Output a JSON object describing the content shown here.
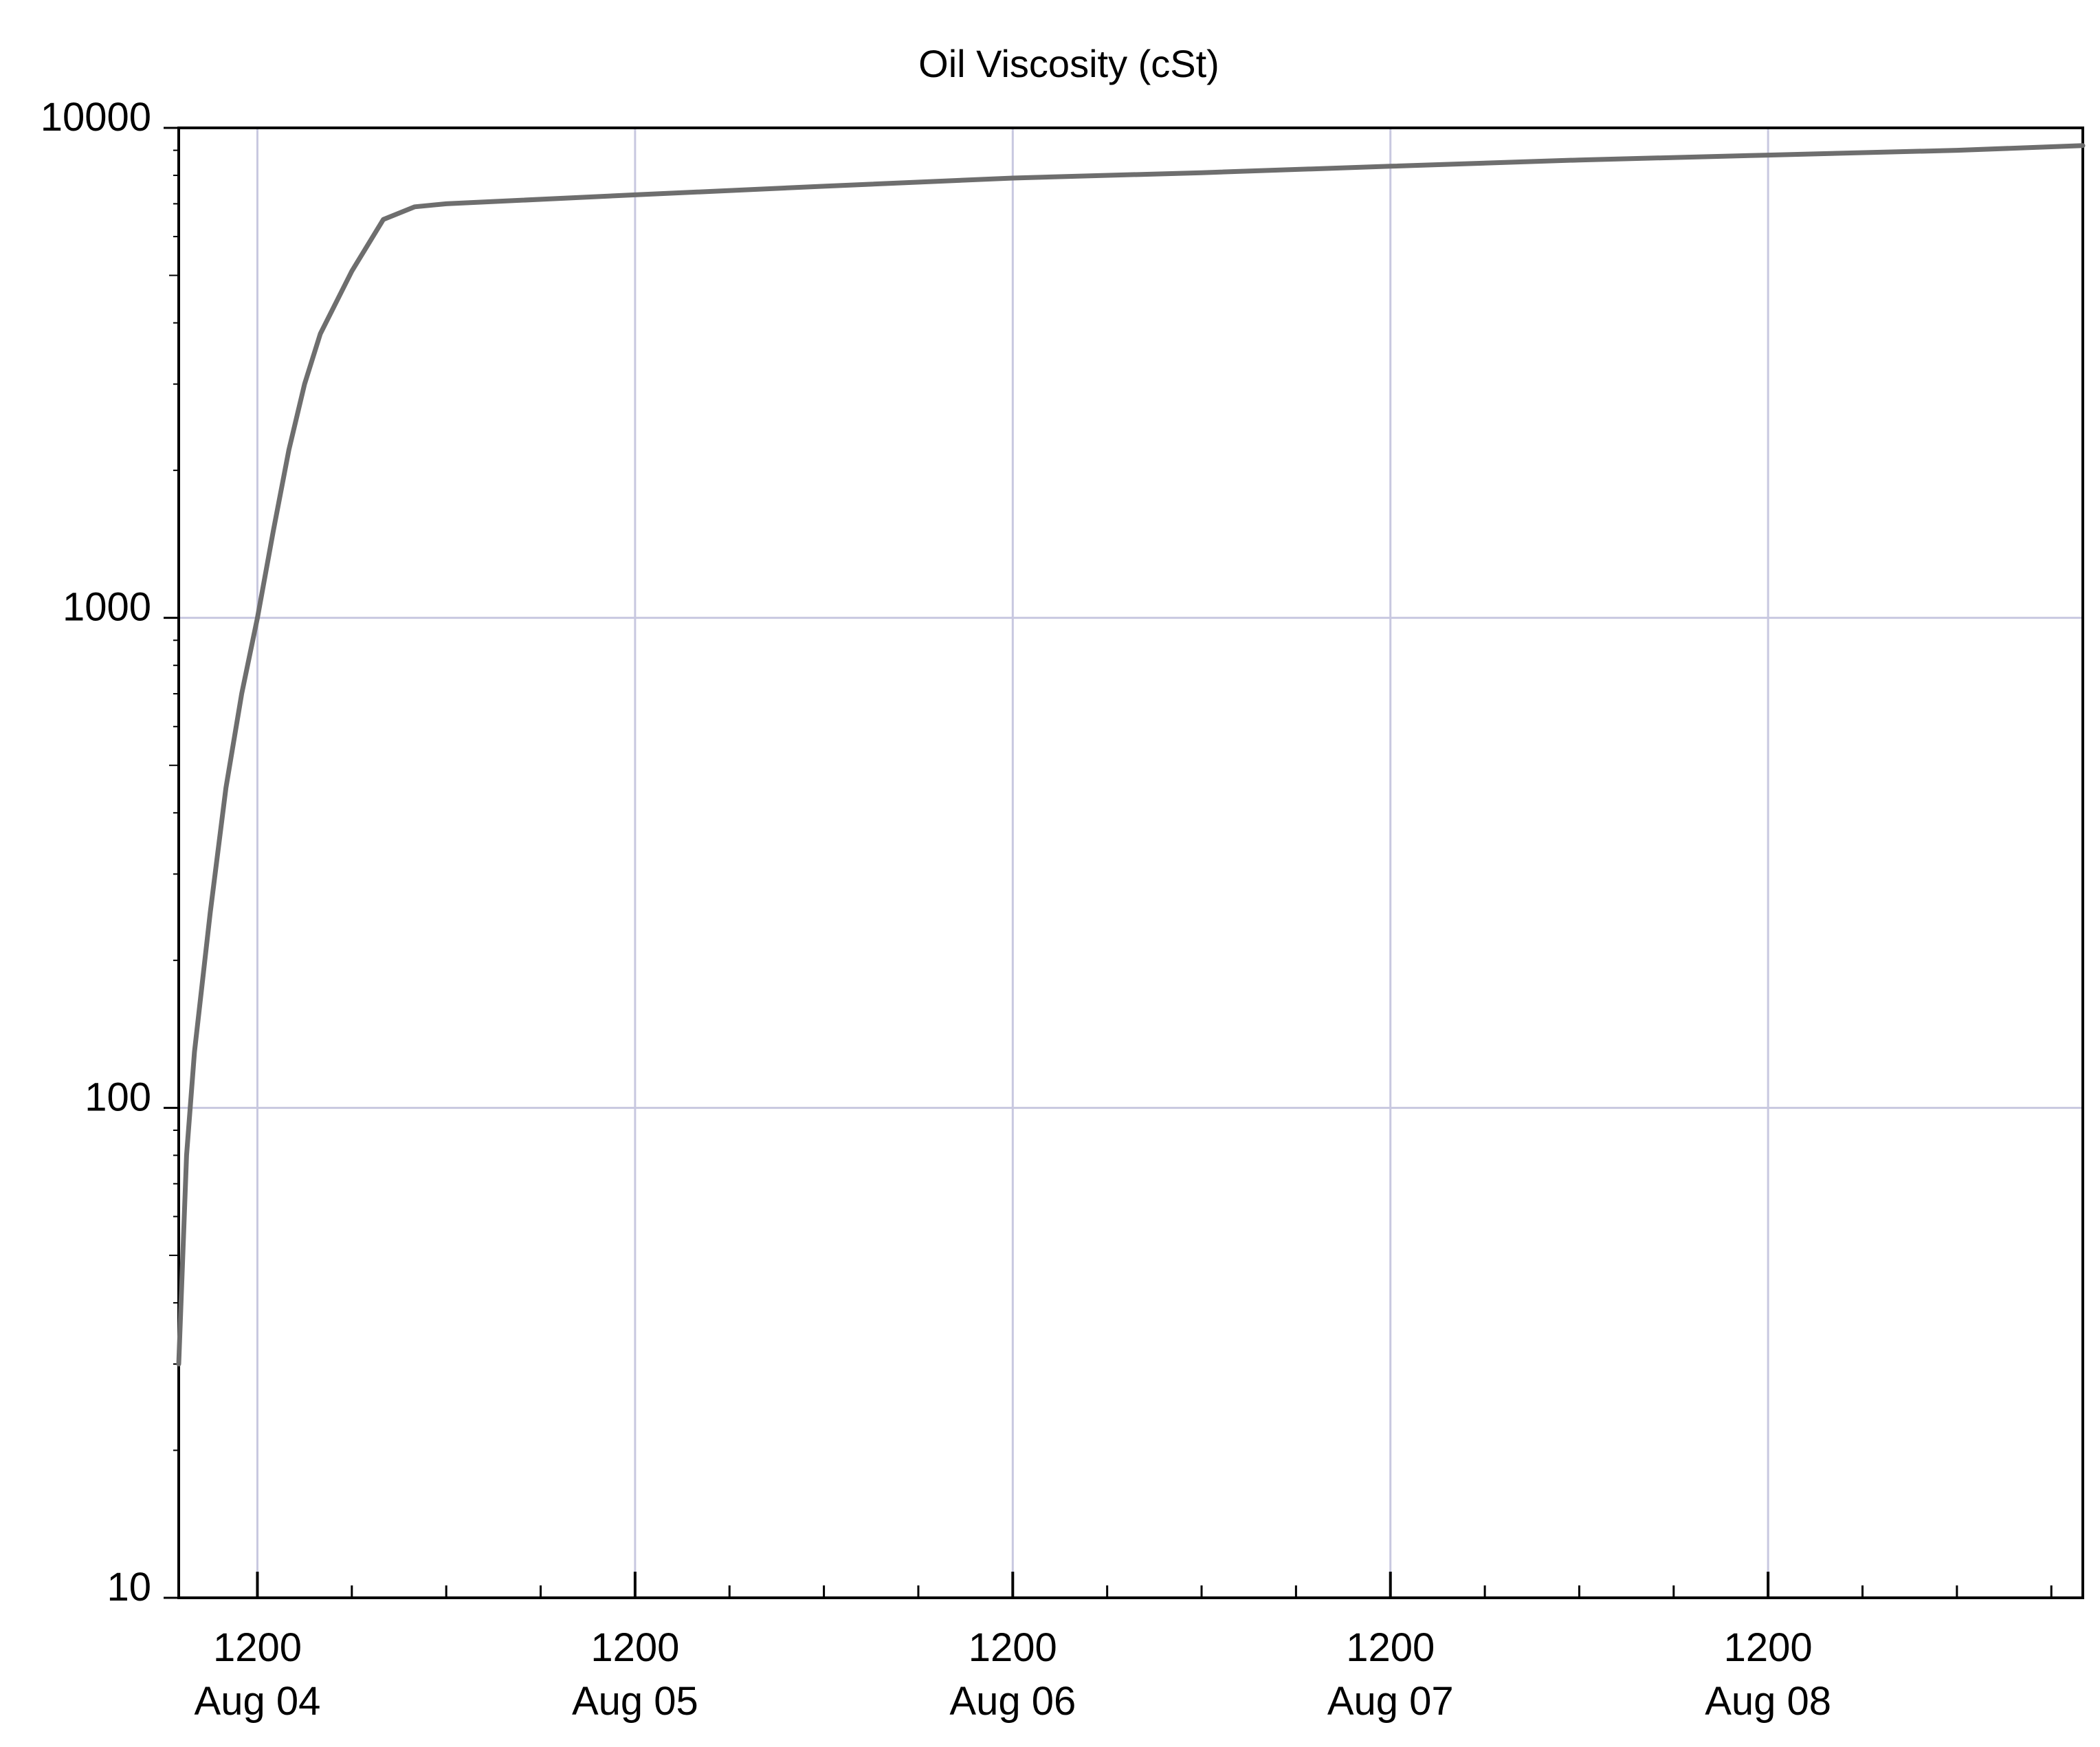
{
  "chart_data": {
    "type": "line",
    "title": "Oil Viscosity (cSt)",
    "xlabel": "",
    "ylabel": "",
    "y_scale": "log",
    "ylim": [
      10,
      10000
    ],
    "y_ticks": [
      {
        "value": 10,
        "label": "10"
      },
      {
        "value": 100,
        "label": "100"
      },
      {
        "value": 1000,
        "label": "1000"
      },
      {
        "value": 10000,
        "label": "10000"
      }
    ],
    "xlim": [
      "2004-08-04T07:00",
      "2004-08-09T08:00"
    ],
    "x_ticks": [
      {
        "value": "2004-08-04T12:00",
        "time_label": "1200",
        "date_label": "Aug 04"
      },
      {
        "value": "2004-08-05T12:00",
        "time_label": "1200",
        "date_label": "Aug 05"
      },
      {
        "value": "2004-08-06T12:00",
        "time_label": "1200",
        "date_label": "Aug 06"
      },
      {
        "value": "2004-08-07T12:00",
        "time_label": "1200",
        "date_label": "Aug 07"
      },
      {
        "value": "2004-08-08T12:00",
        "time_label": "1200",
        "date_label": "Aug 08"
      }
    ],
    "grid": true,
    "line_color": "#6e6e6e",
    "grid_color": "#c8c8e0",
    "series": [
      {
        "x": [
          "2004-08-04T07:00",
          "2004-08-04T07:30",
          "2004-08-04T08:00",
          "2004-08-04T09:00",
          "2004-08-04T10:00",
          "2004-08-04T11:00",
          "2004-08-04T12:00",
          "2004-08-04T13:00",
          "2004-08-04T14:00",
          "2004-08-04T15:00",
          "2004-08-04T16:00",
          "2004-08-04T18:00",
          "2004-08-04T20:00",
          "2004-08-04T22:00",
          "2004-08-05T00:00",
          "2004-08-05T12:00",
          "2004-08-06T00:00",
          "2004-08-06T12:00",
          "2004-08-07T00:00",
          "2004-08-07T12:00",
          "2004-08-08T00:00",
          "2004-08-08T12:00",
          "2004-08-09T00:00",
          "2004-08-09T08:00"
        ],
        "values": [
          30,
          80,
          130,
          250,
          450,
          700,
          1000,
          1500,
          2200,
          3000,
          3800,
          5100,
          6500,
          6900,
          7000,
          7300,
          7600,
          7900,
          8100,
          8350,
          8600,
          8800,
          9000,
          9200
        ]
      }
    ]
  }
}
